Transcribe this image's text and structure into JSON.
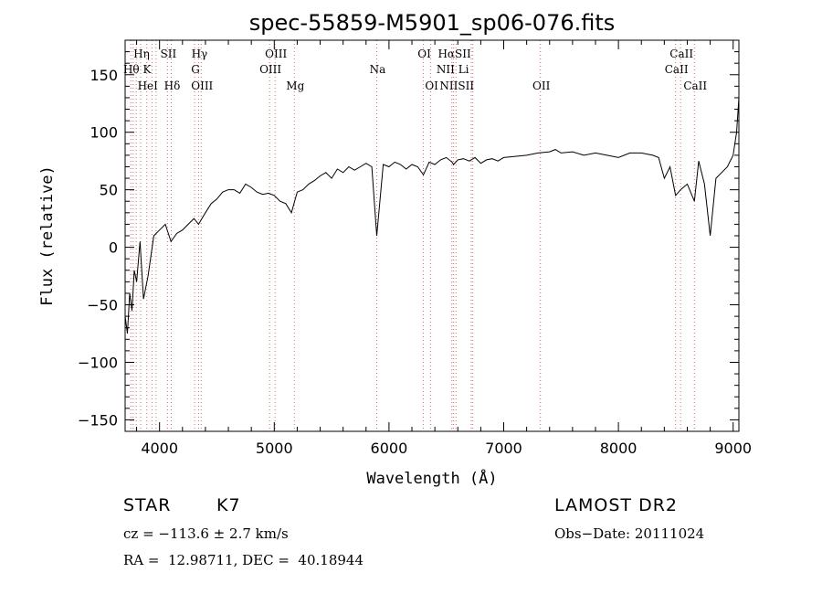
{
  "chart_data": {
    "type": "line",
    "title": "spec-55859-M5901_sp06-076.fits",
    "xlabel": "Wavelength (Å)",
    "ylabel": "Flux (relative)",
    "xlim": [
      3700,
      9050
    ],
    "ylim": [
      -160,
      180
    ],
    "xticks": [
      4000,
      5000,
      6000,
      7000,
      8000,
      9000
    ],
    "yticks": [
      -150,
      -100,
      -50,
      0,
      50,
      100,
      150
    ],
    "grid": false,
    "line_color": "#000000",
    "marker_color": "#d46a6a",
    "series": [
      {
        "x": [
          3700,
          3720,
          3740,
          3760,
          3780,
          3800,
          3830,
          3860,
          3900,
          3950,
          4000,
          4050,
          4100,
          4150,
          4200,
          4250,
          4300,
          4340,
          4400,
          4450,
          4500,
          4550,
          4600,
          4650,
          4700,
          4750,
          4800,
          4850,
          4900,
          4950,
          5000,
          5050,
          5100,
          5150,
          5200,
          5250,
          5300,
          5350,
          5400,
          5450,
          5500,
          5550,
          5600,
          5650,
          5700,
          5750,
          5800,
          5850,
          5893,
          5950,
          6000,
          6050,
          6100,
          6150,
          6200,
          6250,
          6300,
          6350,
          6400,
          6450,
          6500,
          6550,
          6563,
          6600,
          6650,
          6700,
          6750,
          6800,
          6850,
          6900,
          6950,
          7000,
          7100,
          7200,
          7300,
          7400,
          7450,
          7500,
          7600,
          7700,
          7800,
          7900,
          8000,
          8100,
          8200,
          8300,
          8350,
          8400,
          8450,
          8498,
          8542,
          8600,
          8662,
          8700,
          8750,
          8800,
          8850,
          8900,
          8950,
          9000,
          9030,
          9050
        ],
        "y": [
          -60,
          -75,
          -40,
          -55,
          -20,
          -30,
          5,
          -45,
          -25,
          10,
          15,
          20,
          5,
          12,
          15,
          20,
          25,
          20,
          30,
          38,
          42,
          48,
          50,
          50,
          47,
          55,
          52,
          48,
          46,
          47,
          45,
          40,
          38,
          30,
          48,
          50,
          55,
          58,
          62,
          65,
          60,
          68,
          65,
          70,
          67,
          70,
          73,
          70,
          10,
          72,
          70,
          74,
          72,
          68,
          72,
          70,
          63,
          74,
          72,
          76,
          78,
          74,
          72,
          76,
          77,
          75,
          78,
          73,
          76,
          77,
          75,
          78,
          79,
          80,
          82,
          83,
          85,
          82,
          83,
          80,
          82,
          80,
          78,
          82,
          82,
          80,
          78,
          60,
          70,
          45,
          50,
          55,
          40,
          75,
          55,
          10,
          60,
          65,
          70,
          80,
          100,
          130
        ]
      }
    ],
    "line_markers": [
      {
        "label": "Hη",
        "x": 3835,
        "row": 1
      },
      {
        "label": "SII",
        "x": 4069,
        "row": 1
      },
      {
        "label": "Hγ",
        "x": 4340,
        "row": 1
      },
      {
        "label": "OIII",
        "x": 5007,
        "row": 1
      },
      {
        "label": "OI",
        "x": 6300,
        "row": 1
      },
      {
        "label": "HαSII",
        "x": 6563,
        "row": 1
      },
      {
        "label": "CaII",
        "x": 8542,
        "row": 1
      },
      {
        "label": "Hθ K",
        "x": 3797,
        "row": 2
      },
      {
        "label": "G",
        "x": 4305,
        "row": 2
      },
      {
        "label": "OIII",
        "x": 4959,
        "row": 2
      },
      {
        "label": "Na",
        "x": 5893,
        "row": 2
      },
      {
        "label": "NII Li",
        "x": 6548,
        "row": 2
      },
      {
        "label": "CaII",
        "x": 8498,
        "row": 2
      },
      {
        "label": "HeI",
        "x": 3889,
        "row": 3
      },
      {
        "label": "Hδ",
        "x": 4102,
        "row": 3
      },
      {
        "label": "OIII",
        "x": 4363,
        "row": 3
      },
      {
        "label": "Mg",
        "x": 5175,
        "row": 3
      },
      {
        "label": "OI",
        "x": 6364,
        "row": 3
      },
      {
        "label": "NIISII",
        "x": 6584,
        "row": 3
      },
      {
        "label": "OII",
        "x": 7320,
        "row": 3
      },
      {
        "label": "CaII",
        "x": 8662,
        "row": 3
      }
    ],
    "marker_lines_x": [
      3750,
      3770,
      3797,
      3835,
      3889,
      3934,
      3970,
      4069,
      4102,
      4305,
      4340,
      4363,
      4959,
      5007,
      5175,
      5893,
      6300,
      6364,
      6548,
      6563,
      6584,
      6717,
      6731,
      7320,
      8498,
      8542,
      8662
    ]
  },
  "info": {
    "object_class": "STAR",
    "subclass": "K7",
    "survey": "LAMOST DR2",
    "redshift": "cz = −113.6 ± 2.7 km/s",
    "obs_date": "Obs−Date: 20111024",
    "coords": "RA =  12.98711, DEC =  40.18944"
  }
}
